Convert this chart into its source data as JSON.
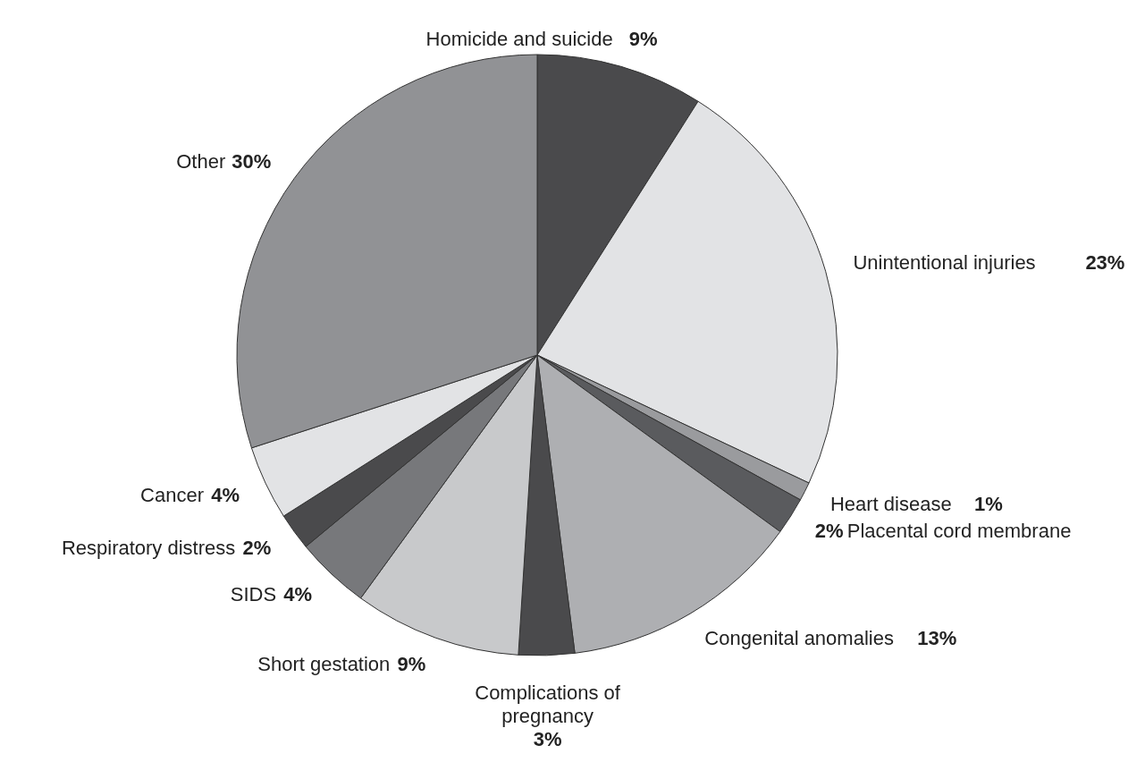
{
  "chart_data": {
    "type": "pie",
    "categories": [
      "Homicide and suicide",
      "Unintentional injuries",
      "Heart disease",
      "Placental cord membrane",
      "Congenital anomalies",
      "Complications of pregnancy",
      "Short gestation",
      "SIDS",
      "Respiratory distress",
      "Cancer",
      "Other"
    ],
    "values": [
      9,
      23,
      1,
      2,
      13,
      3,
      9,
      4,
      2,
      4,
      30
    ],
    "colors": [
      "#4a4a4c",
      "#e2e3e5",
      "#9a9b9e",
      "#5a5b5e",
      "#aeafb2",
      "#4a4a4c",
      "#c8c9cb",
      "#77787b",
      "#4a4a4c",
      "#e2e3e5",
      "#919295"
    ],
    "value_labels": [
      "9%",
      "23%",
      "1%",
      "2%",
      "13%",
      "3%",
      "9%",
      "4%",
      "2%",
      "4%",
      "30%"
    ]
  }
}
